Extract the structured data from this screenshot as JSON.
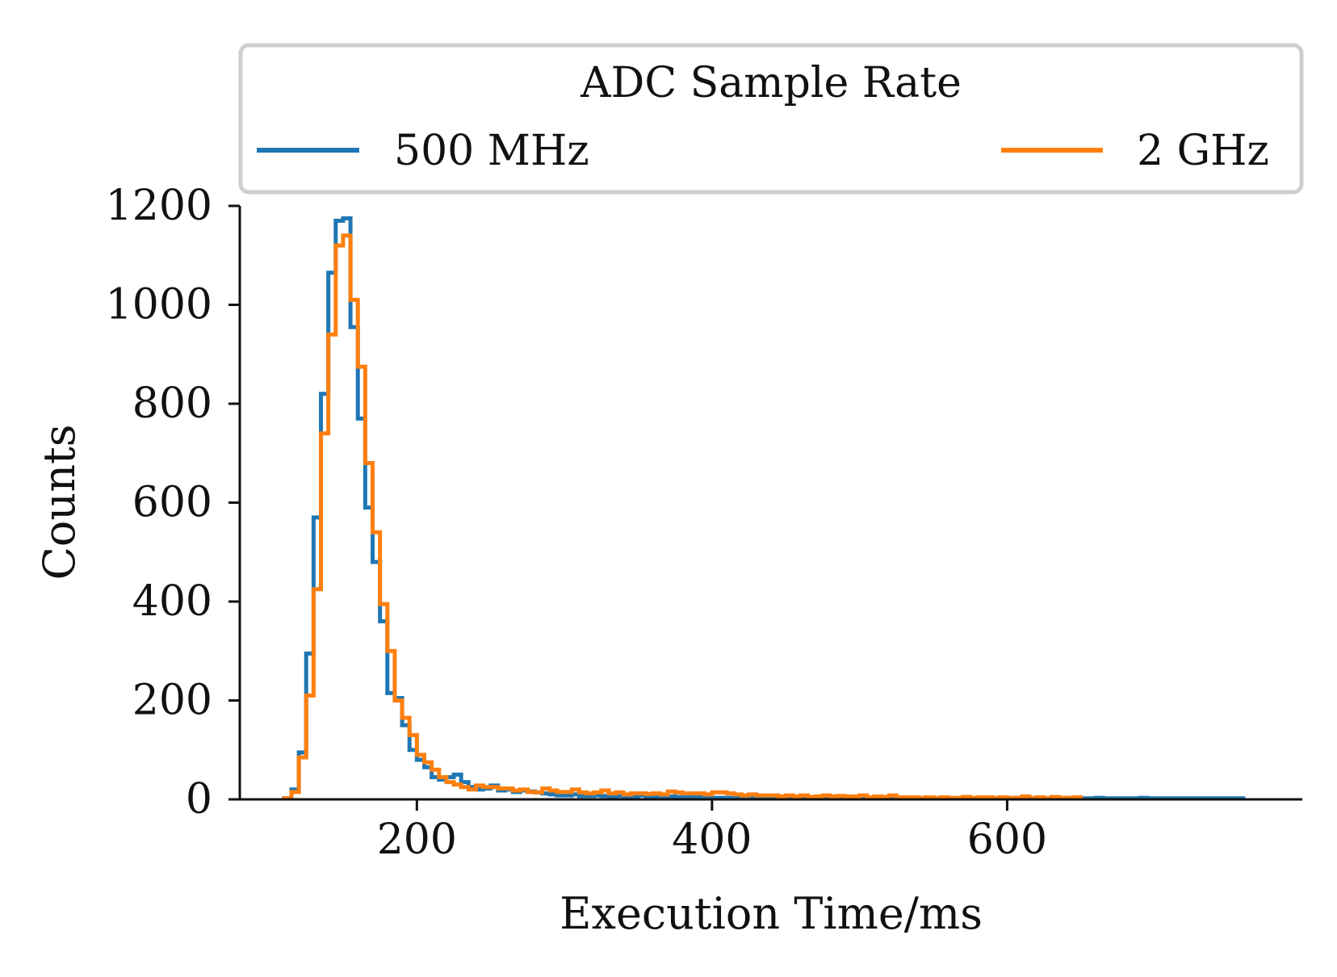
{
  "chart_data": {
    "type": "histogram-step",
    "title": "",
    "xlabel": "Execution Time/ms",
    "ylabel": "Counts",
    "xlim": [
      80,
      800
    ],
    "ylim": [
      0,
      1200
    ],
    "xticks": [
      200,
      400,
      600
    ],
    "yticks": [
      0,
      200,
      400,
      600,
      800,
      1000,
      1200
    ],
    "legend": {
      "title": "ADC Sample Rate",
      "placement": "top",
      "entries": [
        "500 MHz",
        "2 GHz"
      ]
    },
    "bin_start": 110,
    "bin_width": 5,
    "series": [
      {
        "name": "500 MHz",
        "color": "#1f77b4",
        "values": [
          2,
          20,
          95,
          295,
          570,
          820,
          1065,
          1170,
          1175,
          955,
          770,
          590,
          480,
          360,
          215,
          205,
          150,
          100,
          80,
          65,
          45,
          40,
          45,
          50,
          35,
          25,
          20,
          22,
          28,
          18,
          20,
          15,
          18,
          16,
          14,
          12,
          10,
          8,
          8,
          10,
          7,
          7,
          8,
          7,
          6,
          7,
          6,
          5,
          8,
          5,
          4,
          5,
          6,
          5,
          5,
          4,
          4,
          3,
          3,
          3,
          3,
          3,
          3,
          3,
          3,
          2,
          3,
          2,
          2,
          3,
          2,
          2,
          2,
          2,
          2,
          3,
          2,
          2,
          2,
          2,
          2,
          2,
          2,
          2,
          2,
          3,
          2,
          2,
          2,
          2,
          2,
          2,
          2,
          2,
          3,
          2,
          2,
          2,
          2,
          3,
          2,
          2,
          2,
          2,
          2,
          3,
          2,
          2,
          2,
          2,
          3,
          2,
          2,
          2,
          2,
          2,
          3,
          2,
          2,
          2,
          2,
          2,
          2,
          2,
          2,
          2,
          2,
          2,
          2,
          2
        ]
      },
      {
        "name": "2 GHz",
        "color": "#ff7f0e",
        "values": [
          2,
          15,
          85,
          210,
          425,
          740,
          940,
          1120,
          1140,
          1010,
          875,
          680,
          540,
          395,
          300,
          200,
          165,
          130,
          90,
          75,
          60,
          45,
          35,
          30,
          25,
          20,
          28,
          25,
          25,
          22,
          22,
          18,
          20,
          15,
          14,
          22,
          18,
          15,
          15,
          20,
          14,
          12,
          14,
          18,
          12,
          14,
          10,
          12,
          12,
          11,
          12,
          10,
          16,
          14,
          12,
          12,
          12,
          10,
          14,
          14,
          12,
          10,
          8,
          10,
          8,
          8,
          8,
          6,
          8,
          6,
          8,
          5,
          6,
          8,
          6,
          7,
          6,
          6,
          8,
          4,
          6,
          5,
          8,
          4,
          4,
          4,
          3,
          4,
          3,
          4,
          3,
          3,
          5,
          3,
          4,
          4,
          3,
          4,
          3,
          3,
          6,
          3,
          4,
          2,
          5,
          3,
          3,
          4
        ]
      }
    ]
  }
}
